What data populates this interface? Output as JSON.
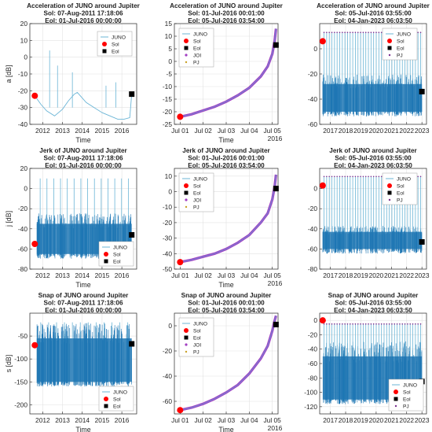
{
  "chart_data": [
    {
      "type": "line",
      "title": [
        "Acceleration of JUNO around Jupiter",
        "Sol: 07-Aug-2011 17:18:06",
        "Eol: 01-Jul-2016 00:00:00"
      ],
      "xlabel": "Time",
      "ylabel": "a [dB]",
      "xlim": [
        2011.35,
        2016.75
      ],
      "ylim": [
        -40,
        20
      ],
      "xticks": [
        2012,
        2013,
        2014,
        2015,
        2016
      ],
      "xtick_labels": [
        "2012",
        "2013",
        "2014",
        "2015",
        "2016"
      ],
      "yticks": [
        -40,
        -30,
        -20,
        -10,
        0,
        10,
        20
      ],
      "ytick_labels": [
        "-40",
        "-30",
        "-20",
        "-10",
        "0",
        "10",
        "20"
      ],
      "grid": true,
      "legend_position": "top-right",
      "legend_entries": [
        "JUNO",
        "Sol",
        "Eol"
      ],
      "series": [
        {
          "name": "JUNO",
          "color": "#6bb5d6",
          "x": [
            2011.6,
            2011.9,
            2012.2,
            2012.6,
            2013.0,
            2013.3,
            2013.6,
            2013.75,
            2013.9,
            2014.2,
            2014.6,
            2015.0,
            2015.4,
            2015.8,
            2016.1,
            2016.4,
            2016.5
          ],
          "y": [
            -23,
            -28,
            -32,
            -35,
            -31,
            -26,
            -22,
            -21,
            -23,
            -27,
            -30,
            -33,
            -35,
            -37,
            -37,
            -36,
            -22
          ]
        }
      ],
      "spikes": {
        "x": [
          2012.35,
          2012.75,
          2013.5,
          2015.2,
          2015.7
        ],
        "y": [
          4,
          -5,
          -9,
          -17,
          -15
        ],
        "base": -30
      },
      "markers": [
        {
          "name": "Sol",
          "x": 2011.6,
          "y": -23,
          "color": "#ff0000",
          "shape": "circle"
        },
        {
          "name": "Eol",
          "x": 2016.5,
          "y": -22,
          "color": "#000000",
          "shape": "square"
        }
      ]
    },
    {
      "type": "line",
      "title": [
        "Acceleration of JUNO around Jupiter",
        "Sol: 01-Jul-2016 00:01:00",
        "Eol: 05-Jul-2016 03:54:00"
      ],
      "xlabel": "Time",
      "ylabel": "",
      "xlabel2": "2016",
      "xlim": [
        0.75,
        5.25
      ],
      "ylim": [
        -25,
        15
      ],
      "xticks": [
        1,
        2,
        3,
        4,
        5
      ],
      "xtick_labels": [
        "Jul 01",
        "Jul 02",
        "Jul 03",
        "Jul 04",
        "Jul 05"
      ],
      "yticks": [
        -25,
        -20,
        -15,
        -10,
        -5,
        0,
        5,
        10,
        15
      ],
      "ytick_labels": [
        "-25",
        "-20",
        "-15",
        "-10",
        "-5",
        "0",
        "5",
        "10",
        "15"
      ],
      "grid": true,
      "legend_position": "top-left",
      "legend_entries": [
        "JUNO",
        "Sol",
        "Eol",
        "JOI",
        "PJ"
      ],
      "series": [
        {
          "name": "JUNO",
          "color": "#a23ec2",
          "x": [
            1.0,
            1.5,
            2.0,
            2.5,
            3.0,
            3.5,
            4.0,
            4.5,
            4.8,
            5.0,
            5.1,
            5.16
          ],
          "y": [
            -22,
            -21,
            -19.5,
            -18,
            -16,
            -13.5,
            -10.5,
            -6,
            -2,
            3,
            8,
            13
          ]
        }
      ],
      "markers": [
        {
          "name": "Sol",
          "x": 1.0,
          "y": -22,
          "color": "#ff0000",
          "shape": "circle"
        },
        {
          "name": "Eol",
          "x": 5.16,
          "y": 6.5,
          "color": "#000000",
          "shape": "square"
        }
      ]
    },
    {
      "type": "line",
      "title": [
        "Acceleration of JUNO around Jupiter",
        "Sol: 05-Jul-2016 03:55:00",
        "Eol: 04-Jan-2023 06:03:50"
      ],
      "xlabel": "",
      "ylabel": "",
      "xlim": [
        2016.3,
        2023.3
      ],
      "ylim": [
        -60,
        20
      ],
      "xticks": [
        2017,
        2018,
        2019,
        2020,
        2021,
        2022,
        2023
      ],
      "xtick_labels": [
        "2017",
        "2018",
        "2019",
        "2020",
        "2021",
        "2022",
        "2023"
      ],
      "yticks": [
        -60,
        -40,
        -20,
        0
      ],
      "ytick_labels": [
        "-60",
        "-40",
        "-20",
        "0"
      ],
      "grid": true,
      "legend_position": "top-right",
      "legend_entries": [
        "JUNO",
        "Sol",
        "Eol",
        "PJ"
      ],
      "band": {
        "color": "#1f77b4",
        "x_start": 2016.5,
        "x_end": 2023.0,
        "low": -50,
        "high": -28,
        "spike_top": 13,
        "spikes": 38
      },
      "markers": [
        {
          "name": "Sol",
          "x": 2016.5,
          "y": 6,
          "color": "#ff0000",
          "shape": "circle"
        },
        {
          "name": "Eol",
          "x": 2023.0,
          "y": -34,
          "color": "#000000",
          "shape": "square"
        }
      ]
    },
    {
      "type": "line",
      "title": [
        "Jerk of JUNO around Jupiter",
        "Sol: 07-Aug-2011 17:18:06",
        "Eol: 01-Jul-2016 00:00:00"
      ],
      "xlabel": "Time",
      "ylabel": "j [dB]",
      "xlim": [
        2011.35,
        2016.75
      ],
      "ylim": [
        -80,
        20
      ],
      "xticks": [
        2012,
        2013,
        2014,
        2015,
        2016
      ],
      "xtick_labels": [
        "2012",
        "2013",
        "2014",
        "2015",
        "2016"
      ],
      "yticks": [
        -80,
        -60,
        -40,
        -20,
        0,
        20
      ],
      "ytick_labels": [
        "-80",
        "-60",
        "-40",
        "-20",
        "0",
        "20"
      ],
      "grid": true,
      "legend_position": "bottom-right",
      "legend_entries": [
        "JUNO",
        "Sol",
        "Eol"
      ],
      "band": {
        "color": "#1f77b4",
        "x_start": 2011.7,
        "x_end": 2016.5,
        "low": -65,
        "high": -35,
        "spike_top": 10,
        "spikes": 14
      },
      "markers": [
        {
          "name": "Sol",
          "x": 2011.6,
          "y": -55,
          "color": "#ff0000",
          "shape": "circle"
        },
        {
          "name": "Eol",
          "x": 2016.5,
          "y": -46,
          "color": "#000000",
          "shape": "square"
        }
      ]
    },
    {
      "type": "line",
      "title": [
        "Jerk of JUNO around Jupiter",
        "Sol: 01-Jul-2016 00:01:00",
        "Eol: 05-Jul-2016 03:54:00"
      ],
      "xlabel": "Time",
      "ylabel": "",
      "xlabel2": "2016",
      "xlim": [
        0.75,
        5.25
      ],
      "ylim": [
        -50,
        15
      ],
      "xticks": [
        1,
        2,
        3,
        4,
        5
      ],
      "xtick_labels": [
        "Jul 01",
        "Jul 02",
        "Jul 03",
        "Jul 04",
        "Jul 05"
      ],
      "yticks": [
        -50,
        -40,
        -30,
        -20,
        -10,
        0,
        10
      ],
      "ytick_labels": [
        "-50",
        "-40",
        "-30",
        "-20",
        "-10",
        "0",
        "10"
      ],
      "grid": true,
      "legend_position": "top-left",
      "legend_entries": [
        "JUNO",
        "Sol",
        "Eol",
        "JOI",
        "PJ"
      ],
      "series": [
        {
          "name": "JUNO",
          "color": "#a23ec2",
          "x": [
            1.0,
            1.5,
            2.0,
            2.5,
            3.0,
            3.5,
            4.0,
            4.5,
            4.8,
            5.0,
            5.1,
            5.16
          ],
          "y": [
            -45.5,
            -44,
            -42,
            -40,
            -37,
            -33,
            -28,
            -20,
            -14,
            -5,
            3,
            11
          ]
        }
      ],
      "markers": [
        {
          "name": "Sol",
          "x": 1.0,
          "y": -45.5,
          "color": "#ff0000",
          "shape": "circle"
        },
        {
          "name": "Eol",
          "x": 5.16,
          "y": 2,
          "color": "#000000",
          "shape": "square"
        }
      ]
    },
    {
      "type": "line",
      "title": [
        "Jerk of JUNO around Jupiter",
        "Sol: 05-Jul-2016 03:55:00",
        "Eol: 04-Jan-2023 06:03:50"
      ],
      "xlabel": "",
      "ylabel": "",
      "xlim": [
        2016.3,
        2023.3
      ],
      "ylim": [
        -80,
        20
      ],
      "xticks": [
        2017,
        2018,
        2019,
        2020,
        2021,
        2022,
        2023
      ],
      "xtick_labels": [
        "2017",
        "2018",
        "2019",
        "2020",
        "2021",
        "2022",
        "2023"
      ],
      "yticks": [
        -80,
        -60,
        -40,
        -20,
        0
      ],
      "ytick_labels": [
        "-80",
        "-60",
        "-40",
        "-20",
        "0"
      ],
      "grid": true,
      "legend_position": "top-right",
      "legend_entries": [
        "JUNO",
        "Sol",
        "Eol",
        "PJ"
      ],
      "band": {
        "color": "#1f77b4",
        "x_start": 2016.5,
        "x_end": 2023.0,
        "low": -60,
        "high": -43,
        "spike_top": 12,
        "spikes": 38
      },
      "markers": [
        {
          "name": "Sol",
          "x": 2016.5,
          "y": 3,
          "color": "#ff0000",
          "shape": "circle"
        },
        {
          "name": "Eol",
          "x": 2023.0,
          "y": -53,
          "color": "#000000",
          "shape": "square"
        }
      ]
    },
    {
      "type": "line",
      "title": [
        "Snap of JUNO around Jupiter",
        "Sol: 07-Aug-2011 17:18:06",
        "Eol: 01-Jul-2016 00:00:00"
      ],
      "xlabel": "Time",
      "ylabel": "s [dB]",
      "xlim": [
        2011.35,
        2016.75
      ],
      "ylim": [
        -220,
        0
      ],
      "xticks": [
        2012,
        2013,
        2014,
        2015,
        2016
      ],
      "xtick_labels": [
        "2012",
        "2013",
        "2014",
        "2015",
        "2016"
      ],
      "yticks": [
        -200,
        -150,
        -100,
        -50
      ],
      "ytick_labels": [
        "-200",
        "-150",
        "-100",
        "-50"
      ],
      "grid": true,
      "legend_position": "bottom-right",
      "legend_entries": [
        "JUNO",
        "Sol",
        "Eol"
      ],
      "band": {
        "color": "#1f77b4",
        "x_start": 2011.7,
        "x_end": 2016.5,
        "low": -150,
        "high": -55,
        "spike_top": -20,
        "spikes": 12
      },
      "markers": [
        {
          "name": "Sol",
          "x": 2011.6,
          "y": -70,
          "color": "#ff0000",
          "shape": "circle"
        },
        {
          "name": "Eol",
          "x": 2016.5,
          "y": -67,
          "color": "#000000",
          "shape": "square"
        }
      ]
    },
    {
      "type": "line",
      "title": [
        "Snap of JUNO around Jupiter",
        "Sol: 01-Jul-2016 00:01:00",
        "Eol: 05-Jul-2016 03:54:00"
      ],
      "xlabel": "Time",
      "ylabel": "",
      "xlabel2": "2016",
      "xlim": [
        0.75,
        5.25
      ],
      "ylim": [
        -70,
        10
      ],
      "xticks": [
        1,
        2,
        3,
        4,
        5
      ],
      "xtick_labels": [
        "Jul 01",
        "Jul 02",
        "Jul 03",
        "Jul 04",
        "Jul 05"
      ],
      "yticks": [
        -60,
        -40,
        -20,
        0
      ],
      "ytick_labels": [
        "-60",
        "-40",
        "-20",
        "0"
      ],
      "grid": true,
      "legend_position": "top-left",
      "legend_entries": [
        "JUNO",
        "Sol",
        "Eol",
        "JOI",
        "PJ"
      ],
      "series": [
        {
          "name": "JUNO",
          "color": "#a23ec2",
          "x": [
            1.0,
            1.5,
            2.0,
            2.5,
            3.0,
            3.5,
            4.0,
            4.5,
            4.8,
            5.0,
            5.1,
            5.16
          ],
          "y": [
            -67,
            -65,
            -62,
            -58,
            -53,
            -47,
            -38,
            -26,
            -16,
            -4,
            4,
            8
          ]
        }
      ],
      "markers": [
        {
          "name": "Sol",
          "x": 1.0,
          "y": -67,
          "color": "#ff0000",
          "shape": "circle"
        },
        {
          "name": "Eol",
          "x": 5.16,
          "y": 1,
          "color": "#000000",
          "shape": "square"
        }
      ]
    },
    {
      "type": "line",
      "title": [
        "Snap of JUNO around Jupiter",
        "Sol: 05-Jul-2016 03:55:00",
        "Eol: 04-Jan-2023 06:03:50"
      ],
      "xlabel": "",
      "ylabel": "",
      "xlim": [
        2016.3,
        2023.3
      ],
      "ylim": [
        -130,
        10
      ],
      "xticks": [
        2017,
        2018,
        2019,
        2020,
        2021,
        2022,
        2023
      ],
      "xtick_labels": [
        "2017",
        "2018",
        "2019",
        "2020",
        "2021",
        "2022",
        "2023"
      ],
      "yticks": [
        -120,
        -100,
        -80,
        -60,
        -40,
        -20,
        0
      ],
      "ytick_labels": [
        "-120",
        "-100",
        "-80",
        "-60",
        "-40",
        "-20",
        "0"
      ],
      "grid": true,
      "legend_position": "bottom-right",
      "legend_entries": [
        "JUNO",
        "Sol",
        "Eol",
        "PJ"
      ],
      "band": {
        "color": "#1f77b4",
        "x_start": 2016.5,
        "x_end": 2023.0,
        "low": -110,
        "high": -50,
        "spike_top": -5,
        "spikes": 38
      },
      "markers": [
        {
          "name": "Sol",
          "x": 2016.5,
          "y": 0,
          "color": "#ff0000",
          "shape": "circle"
        },
        {
          "name": "Eol",
          "x": 2023.0,
          "y": -85,
          "color": "#000000",
          "shape": "square"
        }
      ]
    }
  ]
}
